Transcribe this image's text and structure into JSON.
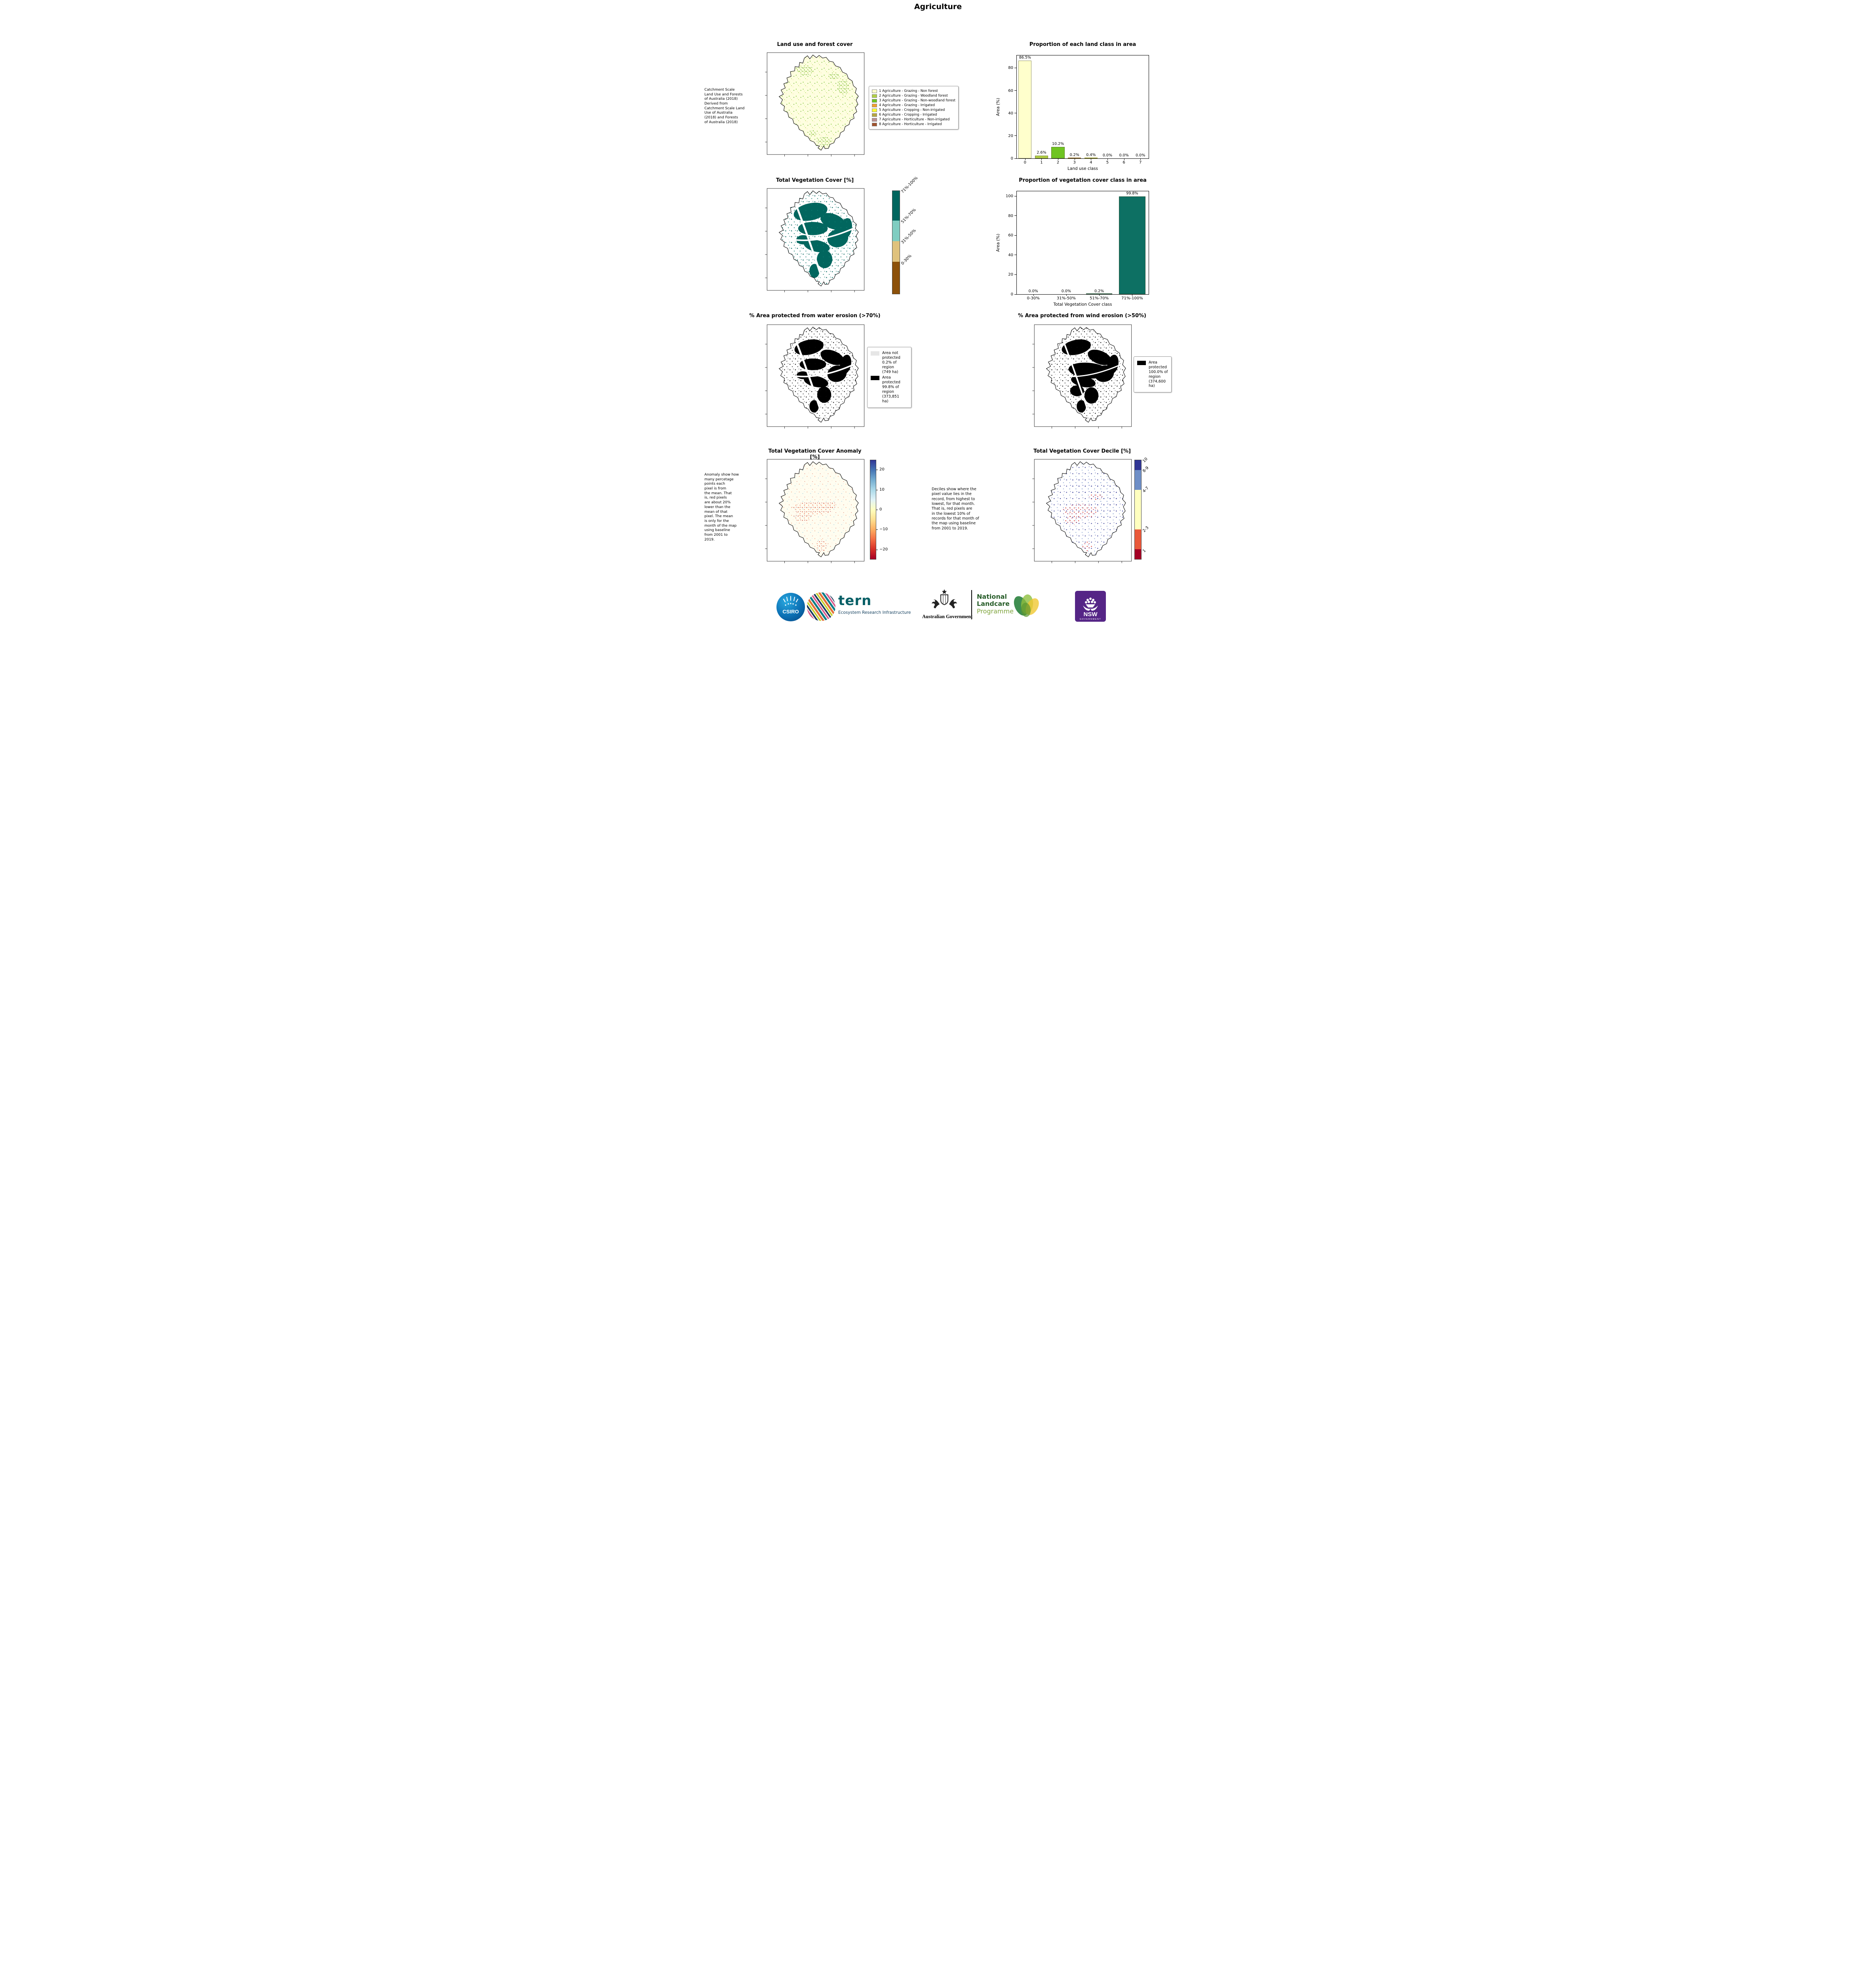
{
  "page": {
    "title": "Agriculture"
  },
  "land_use": {
    "title": "Land use and forest cover",
    "note": " Catchment Scale\nLand Use and Forests\nof Australia (2018)\nDerived from\nCatchment Scale Land\nUse of Australia\n(2018) and Forests\nof Australia (2018)",
    "legend": [
      {
        "label": "1 Agriculture - Grazing - Non forest",
        "color": "#ffffcc"
      },
      {
        "label": "2 Agriculture - Grazing - Woodland forest",
        "color": "#b1cf45"
      },
      {
        "label": "3 Agriculture - Grazing - Non-woodland forest",
        "color": "#6fc422"
      },
      {
        "label": "4 Agriculture - Grazing - Irrigated",
        "color": "#f0a030"
      },
      {
        "label": "5 Agriculture - Cropping - Non-irrigated",
        "color": "#ffff33"
      },
      {
        "label": "6 Agriculture - Cropping - Irrigated",
        "color": "#b5a642"
      },
      {
        "label": "7 Agriculture - Horticulture - Non-irrigated",
        "color": "#bc8f8f"
      },
      {
        "label": "8 Agriculture - Horticulture - Irrigated",
        "color": "#a0522d"
      }
    ]
  },
  "veg_cover": {
    "title": "Total Vegetation Cover [%]",
    "colorbar": [
      {
        "label": "71%-100%",
        "color": "#01665e",
        "span": 29
      },
      {
        "label": "51%-70%",
        "color": "#80cdc1",
        "span": 20
      },
      {
        "label": "31%-50%",
        "color": "#dfc27d",
        "span": 20
      },
      {
        "label": "0-30%",
        "color": "#8c510a",
        "span": 31
      }
    ]
  },
  "water_erosion": {
    "title": "% Area protected from water erosion (>70%)",
    "legend": [
      {
        "color": "#e6e6e6",
        "label": "Area not\nprotected\n0.2% of\nregion\n(749 ha)"
      },
      {
        "color": "#000000",
        "label": "Area\nprotected\n99.8% of\nregion\n(373,851\nha)"
      }
    ]
  },
  "wind_erosion": {
    "title": "% Area protected from wind erosion (>50%)",
    "legend": [
      {
        "color": "#000000",
        "label": "Area\nprotected\n100.0% of\nregion\n(374,600\nha)"
      }
    ]
  },
  "anomaly": {
    "title": "Total Vegetation Cover Anomaly [%]",
    "note": "Anomaly show how\nmany percetage\npoints each\npixel is from\nthe mean. That\nis, red pixels\nare about 20%\nlower than the\nmean of that\npixel. The mean\nis only for the\nmonth of the map\nusing baseline\nfrom 2001 to\n2019.",
    "colorbar": {
      "min": -25,
      "max": 25,
      "tick_values": [
        20,
        10,
        0,
        -10,
        -20
      ],
      "tick_labels": [
        "20",
        "10",
        "0",
        "−10",
        "−20"
      ],
      "colors": [
        "#313695",
        "#4575b4",
        "#74add1",
        "#abd9e9",
        "#e0f3f8",
        "#ffffbf",
        "#fee090",
        "#fdae61",
        "#f46d43",
        "#d73027",
        "#a50026"
      ]
    }
  },
  "decile": {
    "title": "Total Vegetation Cover Decile [%]",
    "note": "Deciles show where the\npixel value lies in the\nrecord, from highest to\nlowest, for that month.\nThat is, red pixels are\nin the lowest 10% of\nrecords for that month of\nthe map using baseline\nfrom 2001 to 2019.",
    "colorbar": [
      {
        "label": "10",
        "color": "#313695",
        "span": 10
      },
      {
        "label": "8-9",
        "color": "#6f8fc7",
        "span": 20
      },
      {
        "label": "4-7",
        "color": "#ffffbf",
        "span": 40
      },
      {
        "label": "2-3",
        "color": "#ea593a",
        "span": 20
      },
      {
        "label": "1",
        "color": "#a50026",
        "span": 10
      }
    ]
  },
  "chart_data": [
    {
      "type": "bar",
      "title": "Proportion of each land class in area",
      "categories": [
        "0",
        "1",
        "2",
        "3",
        "4",
        "5",
        "6",
        "7"
      ],
      "values": [
        86.5,
        2.6,
        10.2,
        0.2,
        0.4,
        0.0,
        0.0,
        0.0
      ],
      "value_labels": [
        "86.5%",
        "2.6%",
        "10.2%",
        "0.2%",
        "0.4%",
        "0.0%",
        "0.0%",
        "0.0%"
      ],
      "bar_colors": [
        "#ffffcc",
        "#b1cf45",
        "#6fc422",
        "#f0a030",
        "#ffff33",
        "#b5a642",
        "#bc8f8f",
        "#a0522d"
      ],
      "xlabel": "Land use class",
      "ylabel": "Area (%)",
      "ylim": [
        0,
        91
      ],
      "yticks": [
        0,
        20,
        40,
        60,
        80
      ],
      "legend_position": "none",
      "grid": false
    },
    {
      "type": "bar",
      "title": "Proportion of vegetation cover class in area",
      "categories": [
        "0-30%",
        "31%-50%",
        "51%-70%",
        "71%-100%"
      ],
      "values": [
        0.0,
        0.0,
        0.2,
        99.8
      ],
      "value_labels": [
        "0.0%",
        "0.0%",
        "0.2%",
        "99.8%"
      ],
      "bar_colors": [
        "#0d7063",
        "#0d7063",
        "#0d7063",
        "#0d7063"
      ],
      "xlabel": "Total Vegetation Cover class",
      "ylabel": "Area (%)",
      "ylim": [
        0,
        105
      ],
      "yticks": [
        0,
        20,
        40,
        60,
        80,
        100
      ],
      "legend_position": "none",
      "grid": false
    }
  ],
  "footer": {
    "csiro_label": "CSIRO",
    "tern_name": "tern",
    "tern_tagline": "Ecosystem Research Infrastructure",
    "aus_gov": "Australian Government",
    "landcare_line1": "National",
    "landcare_line2": "Landcare",
    "landcare_line3": "Programme",
    "nsw_label": "NSW",
    "nsw_sub": "GOVERNMENT"
  }
}
